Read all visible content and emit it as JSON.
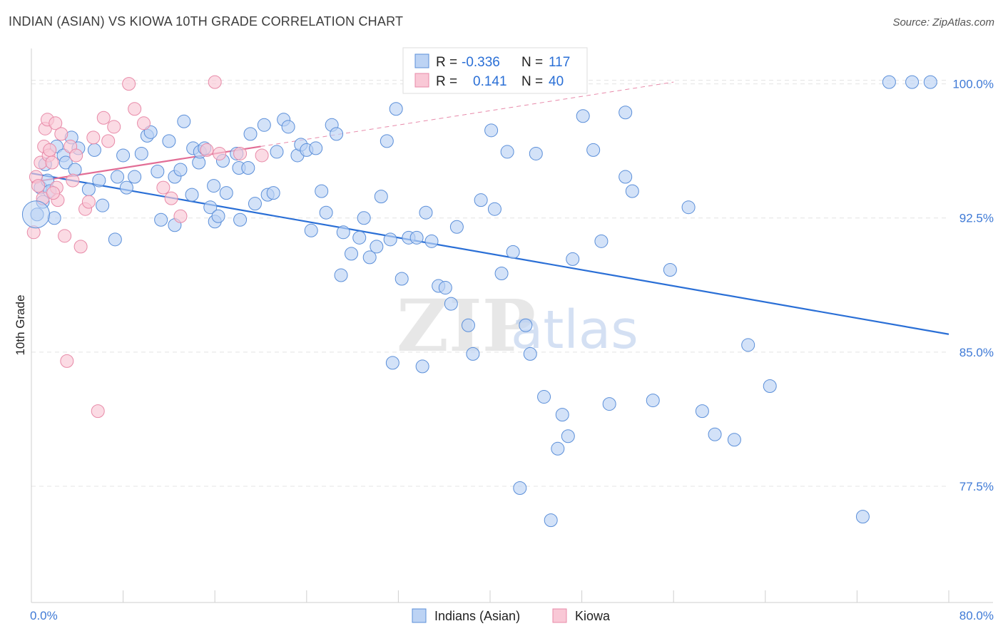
{
  "title": "INDIAN (ASIAN) VS KIOWA 10TH GRADE CORRELATION CHART",
  "source": "Source: ZipAtlas.com",
  "watermark": {
    "zip": "ZIP",
    "atlas": "atlas"
  },
  "legend": {
    "r_label": "R =",
    "n_label": "N =",
    "rows": [
      {
        "r": "-0.336",
        "n": "117",
        "fill": "#bcd3f4",
        "stroke": "#5b8fd9"
      },
      {
        "r": "0.141",
        "n": "40",
        "fill": "#f9c8d6",
        "stroke": "#e88aa8"
      }
    ]
  },
  "bottom_legend": [
    {
      "label": "Indians (Asian)",
      "fill": "#bcd3f4",
      "stroke": "#5b8fd9"
    },
    {
      "label": "Kiowa",
      "fill": "#f9c8d6",
      "stroke": "#e88aa8"
    }
  ],
  "chart_data": {
    "type": "scatter",
    "title": "INDIAN (ASIAN) VS KIOWA 10TH GRADE CORRELATION CHART",
    "xlabel": "",
    "ylabel": "10th Grade",
    "xlim": [
      0,
      80
    ],
    "ylim": [
      71.0,
      101.5
    ],
    "x_tick_labels": [
      "0.0%",
      "80.0%"
    ],
    "y_ticks": [
      77.5,
      85.0,
      92.5,
      100.0
    ],
    "y_tick_labels": [
      "77.5%",
      "85.0%",
      "92.5%",
      "100.0%"
    ],
    "grid": true,
    "series": [
      {
        "name": "Indians (Asian)",
        "color": "#5b8fd9",
        "fill": "#bcd3f4",
        "trend": {
          "x": [
            0,
            80
          ],
          "y": [
            95.0,
            86.0
          ],
          "style": "solid",
          "color": "#2a6fd6"
        },
        "points": [
          [
            0.5,
            92.7
          ],
          [
            0.8,
            94.2
          ],
          [
            1.0,
            93.4
          ],
          [
            1.2,
            95.5
          ],
          [
            1.4,
            94.6
          ],
          [
            1.6,
            94.0
          ],
          [
            2.0,
            92.5
          ],
          [
            2.2,
            96.5
          ],
          [
            2.8,
            96.0
          ],
          [
            3.0,
            95.6
          ],
          [
            3.5,
            97.0
          ],
          [
            3.8,
            95.2
          ],
          [
            4.1,
            96.4
          ],
          [
            5.0,
            94.1
          ],
          [
            5.5,
            96.3
          ],
          [
            5.9,
            94.6
          ],
          [
            6.2,
            93.2
          ],
          [
            7.3,
            91.3
          ],
          [
            7.5,
            94.8
          ],
          [
            8.0,
            96.0
          ],
          [
            8.3,
            94.2
          ],
          [
            9.0,
            94.8
          ],
          [
            9.6,
            96.1
          ],
          [
            10.1,
            97.1
          ],
          [
            10.4,
            97.3
          ],
          [
            11.0,
            95.1
          ],
          [
            11.3,
            92.4
          ],
          [
            12.0,
            96.8
          ],
          [
            12.5,
            92.1
          ],
          [
            12.5,
            94.8
          ],
          [
            13.0,
            95.2
          ],
          [
            13.3,
            97.9
          ],
          [
            14.0,
            93.8
          ],
          [
            14.1,
            96.4
          ],
          [
            14.6,
            95.6
          ],
          [
            14.7,
            96.2
          ],
          [
            15.1,
            96.4
          ],
          [
            15.6,
            93.1
          ],
          [
            15.9,
            94.3
          ],
          [
            16.0,
            92.3
          ],
          [
            16.3,
            92.6
          ],
          [
            16.7,
            95.7
          ],
          [
            17.0,
            93.9
          ],
          [
            17.9,
            96.1
          ],
          [
            18.1,
            95.3
          ],
          [
            18.2,
            92.4
          ],
          [
            18.9,
            95.3
          ],
          [
            19.1,
            97.2
          ],
          [
            19.5,
            93.3
          ],
          [
            20.3,
            97.7
          ],
          [
            20.6,
            93.8
          ],
          [
            21.1,
            93.9
          ],
          [
            21.4,
            96.2
          ],
          [
            22.0,
            98.0
          ],
          [
            22.4,
            97.6
          ],
          [
            23.2,
            96.0
          ],
          [
            23.5,
            96.6
          ],
          [
            24.0,
            96.3
          ],
          [
            24.4,
            91.8
          ],
          [
            24.8,
            96.4
          ],
          [
            25.3,
            94.0
          ],
          [
            25.7,
            92.8
          ],
          [
            26.2,
            97.7
          ],
          [
            26.6,
            97.2
          ],
          [
            27.0,
            89.3
          ],
          [
            27.2,
            91.7
          ],
          [
            27.9,
            90.5
          ],
          [
            28.6,
            91.4
          ],
          [
            29.0,
            92.5
          ],
          [
            29.5,
            90.3
          ],
          [
            30.1,
            90.9
          ],
          [
            30.5,
            93.7
          ],
          [
            31.0,
            96.8
          ],
          [
            31.3,
            91.3
          ],
          [
            31.5,
            84.4
          ],
          [
            31.8,
            98.6
          ],
          [
            32.3,
            89.1
          ],
          [
            32.9,
            91.4
          ],
          [
            33.6,
            91.4
          ],
          [
            34.1,
            84.2
          ],
          [
            34.4,
            92.8
          ],
          [
            34.9,
            91.2
          ],
          [
            35.5,
            88.7
          ],
          [
            36.1,
            88.6
          ],
          [
            36.6,
            87.7
          ],
          [
            37.1,
            92.0
          ],
          [
            38.1,
            86.5
          ],
          [
            38.5,
            84.9
          ],
          [
            39.2,
            93.5
          ],
          [
            40.1,
            97.4
          ],
          [
            40.4,
            93.0
          ],
          [
            41.0,
            89.4
          ],
          [
            41.5,
            96.2
          ],
          [
            42.0,
            90.6
          ],
          [
            42.6,
            77.4
          ],
          [
            43.1,
            86.5
          ],
          [
            43.5,
            84.9
          ],
          [
            44.0,
            96.1
          ],
          [
            44.7,
            82.5
          ],
          [
            45.3,
            75.6
          ],
          [
            45.9,
            79.6
          ],
          [
            46.3,
            81.5
          ],
          [
            46.8,
            80.3
          ],
          [
            47.2,
            90.2
          ],
          [
            48.1,
            98.2
          ],
          [
            49.0,
            96.3
          ],
          [
            49.7,
            91.2
          ],
          [
            50.4,
            82.1
          ],
          [
            51.8,
            94.8
          ],
          [
            51.8,
            98.4
          ],
          [
            52.4,
            94.0
          ],
          [
            54.2,
            82.3
          ],
          [
            55.7,
            89.6
          ],
          [
            57.3,
            93.1
          ],
          [
            58.5,
            81.7
          ],
          [
            59.6,
            80.4
          ],
          [
            61.3,
            80.1
          ],
          [
            62.5,
            85.4
          ],
          [
            64.4,
            83.1
          ],
          [
            72.5,
            75.8
          ],
          [
            74.8,
            100.1
          ],
          [
            76.8,
            100.1
          ],
          [
            78.4,
            100.1
          ]
        ]
      },
      {
        "name": "Kiowa",
        "color": "#e88aa8",
        "fill": "#f9c8d6",
        "trend": {
          "x": [
            0,
            20
          ],
          "y": [
            94.5,
            96.5
          ],
          "style": "solid",
          "color": "#e26d95",
          "extension": {
            "x": [
              20,
              56
            ],
            "y": [
              96.5,
              100.1
            ]
          }
        },
        "points": [
          [
            0.2,
            91.7
          ],
          [
            0.4,
            94.8
          ],
          [
            0.6,
            94.3
          ],
          [
            0.8,
            95.6
          ],
          [
            1.0,
            93.6
          ],
          [
            1.1,
            96.5
          ],
          [
            1.2,
            97.5
          ],
          [
            1.4,
            98.0
          ],
          [
            1.5,
            96.0
          ],
          [
            1.6,
            96.3
          ],
          [
            1.8,
            95.6
          ],
          [
            2.1,
            97.8
          ],
          [
            2.2,
            94.2
          ],
          [
            2.3,
            93.5
          ],
          [
            2.6,
            97.2
          ],
          [
            2.9,
            91.5
          ],
          [
            3.1,
            84.5
          ],
          [
            3.4,
            96.5
          ],
          [
            3.6,
            94.6
          ],
          [
            3.9,
            96.0
          ],
          [
            4.3,
            90.9
          ],
          [
            4.7,
            93.0
          ],
          [
            5.0,
            93.4
          ],
          [
            5.4,
            97.0
          ],
          [
            5.8,
            81.7
          ],
          [
            6.3,
            98.1
          ],
          [
            6.7,
            96.8
          ],
          [
            7.2,
            97.6
          ],
          [
            8.5,
            100.0
          ],
          [
            9.0,
            98.6
          ],
          [
            9.8,
            97.8
          ],
          [
            11.5,
            94.2
          ],
          [
            12.2,
            93.6
          ],
          [
            13.0,
            92.6
          ],
          [
            15.3,
            96.3
          ],
          [
            16.4,
            96.1
          ],
          [
            18.2,
            96.1
          ],
          [
            20.1,
            96.0
          ],
          [
            16.0,
            100.1
          ],
          [
            1.9,
            93.9
          ]
        ]
      }
    ]
  }
}
